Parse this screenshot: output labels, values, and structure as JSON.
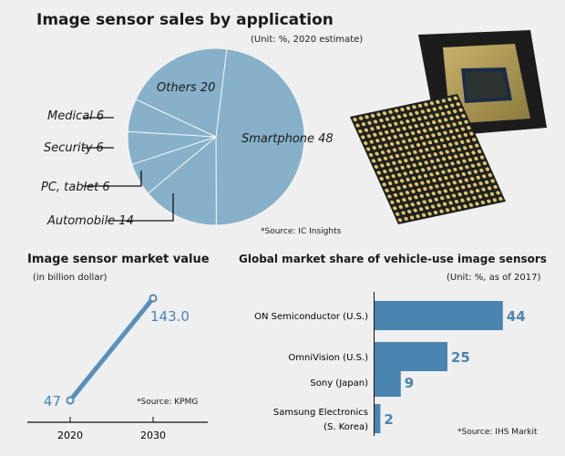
{
  "colors": {
    "background": "#efefef",
    "pie": "#86b1c9",
    "bar": "#4a84b0",
    "line": "#5b8fba",
    "value_text": "#4a84b0"
  },
  "image": {
    "description_icon": "image-sensor-chip-icon"
  },
  "chart_data": [
    {
      "type": "pie",
      "title": "Image sensor sales by application",
      "subtitle": "(Unit: %, 2020 estimate)",
      "source": "*Source: IC Insights",
      "slices": [
        {
          "label": "Smartphone",
          "value": 48,
          "text": "Smartphone 48"
        },
        {
          "label": "Automobile",
          "value": 14,
          "text": "Automobile 14"
        },
        {
          "label": "PC, tablet",
          "value": 6,
          "text": "PC, tablet 6"
        },
        {
          "label": "Security",
          "value": 6,
          "text": "Security 6"
        },
        {
          "label": "Medical",
          "value": 6,
          "text": "Medical 6"
        },
        {
          "label": "Others",
          "value": 20,
          "text": "Others 20"
        }
      ]
    },
    {
      "type": "line",
      "title": "Image sensor market value",
      "subtitle": "(in billion dollar)",
      "source": "*Source: KPMG",
      "x": [
        "2020",
        "2030"
      ],
      "values": [
        47,
        143.0
      ],
      "value_labels": [
        "47",
        "143.0"
      ]
    },
    {
      "type": "bar",
      "orientation": "horizontal",
      "title": "Global market share of vehicle-use image sensors",
      "subtitle": "(Unit: %, as of 2017)",
      "source": "*Source: IHS Markit",
      "categories": [
        [
          "ON Semiconductor (U.S.)"
        ],
        [
          "OmniVision (U.S.)"
        ],
        [
          "Sony (Japan)"
        ],
        [
          "Samsung Electronics",
          "(S. Korea)"
        ]
      ],
      "values": [
        44,
        25,
        9,
        2
      ]
    }
  ]
}
